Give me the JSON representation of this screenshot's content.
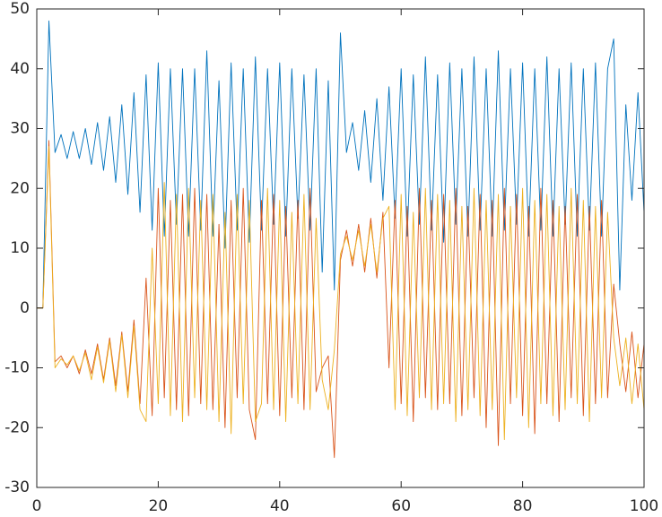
{
  "chart_data": {
    "type": "line",
    "x": [
      0,
      1,
      2,
      3,
      4,
      5,
      6,
      7,
      8,
      9,
      10,
      11,
      12,
      13,
      14,
      15,
      16,
      17,
      18,
      19,
      20,
      21,
      22,
      23,
      24,
      25,
      26,
      27,
      28,
      29,
      30,
      31,
      32,
      33,
      34,
      35,
      36,
      37,
      38,
      39,
      40,
      41,
      42,
      43,
      44,
      45,
      46,
      47,
      48,
      49,
      50,
      51,
      52,
      53,
      54,
      55,
      56,
      57,
      58,
      59,
      60,
      61,
      62,
      63,
      64,
      65,
      66,
      67,
      68,
      69,
      70,
      71,
      72,
      73,
      74,
      75,
      76,
      77,
      78,
      79,
      80,
      81,
      82,
      83,
      84,
      85,
      86,
      87,
      88,
      89,
      90,
      91,
      92,
      93,
      94,
      95,
      96,
      97,
      98,
      99,
      100
    ],
    "series": [
      {
        "color": "#0072BD",
        "values": [
          0,
          0,
          48,
          26,
          29,
          25,
          29.5,
          25,
          30,
          24,
          31,
          23,
          32,
          21,
          34,
          19,
          36,
          16,
          39,
          13,
          41,
          12,
          40,
          14,
          40,
          12,
          40,
          13,
          43,
          12,
          38,
          10,
          41,
          13,
          40,
          11,
          42,
          13,
          40,
          14,
          41,
          12,
          40,
          15,
          39,
          13,
          40,
          6,
          38,
          3,
          46,
          26,
          31,
          23,
          33,
          21,
          35,
          18,
          37,
          15,
          40,
          12,
          39,
          14,
          42,
          13,
          39,
          11,
          41,
          14,
          40,
          12,
          42,
          13,
          40,
          12,
          43,
          13,
          40,
          14,
          41,
          12,
          40,
          13,
          42,
          12,
          40,
          14,
          41,
          12,
          40,
          13,
          41,
          12,
          40,
          45,
          3,
          34,
          18,
          36,
          16
        ]
      },
      {
        "color": "#D95319",
        "values": [
          0,
          0,
          28,
          -9,
          -8,
          -10,
          -8,
          -11,
          -7,
          -11,
          -6,
          -12,
          -5,
          -13,
          -4,
          -14,
          -2,
          -16,
          5,
          -18,
          20,
          -15,
          18,
          -17,
          19,
          -18,
          20,
          -16,
          19,
          -17,
          14,
          -20,
          18,
          -15,
          20,
          -17,
          -22,
          18,
          -16,
          19,
          -18,
          17,
          -15,
          18,
          -17,
          20,
          -14,
          -10,
          -8,
          -25,
          8,
          13,
          7,
          14,
          6,
          15,
          5,
          16,
          -10,
          18,
          -16,
          17,
          -19,
          20,
          -15,
          18,
          -17,
          19,
          -16,
          20,
          -18,
          17,
          -15,
          19,
          -20,
          18,
          -23,
          20,
          -16,
          19,
          -18,
          17,
          -21,
          20,
          -16,
          18,
          -19,
          17,
          -15,
          19,
          -18,
          17,
          -16,
          18,
          -15,
          4,
          -6,
          -14,
          -4,
          -15,
          -6
        ]
      },
      {
        "color": "#EDB120",
        "values": [
          0,
          0,
          27,
          -10,
          -8.5,
          -9.5,
          -8,
          -10.5,
          -7.5,
          -12,
          -6.5,
          -12.5,
          -5.5,
          -14,
          -4.5,
          -15,
          -3,
          -17,
          -19,
          10,
          -16,
          21,
          -18,
          19,
          -19,
          20,
          -15,
          18,
          -17,
          19,
          -19,
          16,
          -21,
          19,
          -16,
          18,
          -19,
          -16,
          20,
          -17,
          18,
          -19,
          16,
          -16,
          19,
          -17,
          15,
          -12,
          -17,
          -7,
          9,
          12,
          8,
          13,
          7,
          14,
          6,
          15,
          17,
          -17,
          19,
          -18,
          16,
          -15,
          20,
          -17,
          19,
          -16,
          18,
          -19,
          17,
          -17,
          20,
          -18,
          18,
          -17,
          19,
          -22,
          17,
          -15,
          20,
          -20,
          18,
          -16,
          19,
          -18,
          17,
          -17,
          20,
          -16,
          18,
          -19,
          17,
          -15,
          16,
          -5,
          -13,
          -5,
          -16,
          -6,
          -17
        ]
      }
    ],
    "xlim": [
      0,
      100
    ],
    "xticks": [
      0,
      20,
      40,
      60,
      80,
      100
    ],
    "ylim": [
      -30,
      50
    ],
    "yticks": [
      -30,
      -20,
      -10,
      0,
      10,
      20,
      30,
      40,
      50
    ],
    "grid": false
  }
}
